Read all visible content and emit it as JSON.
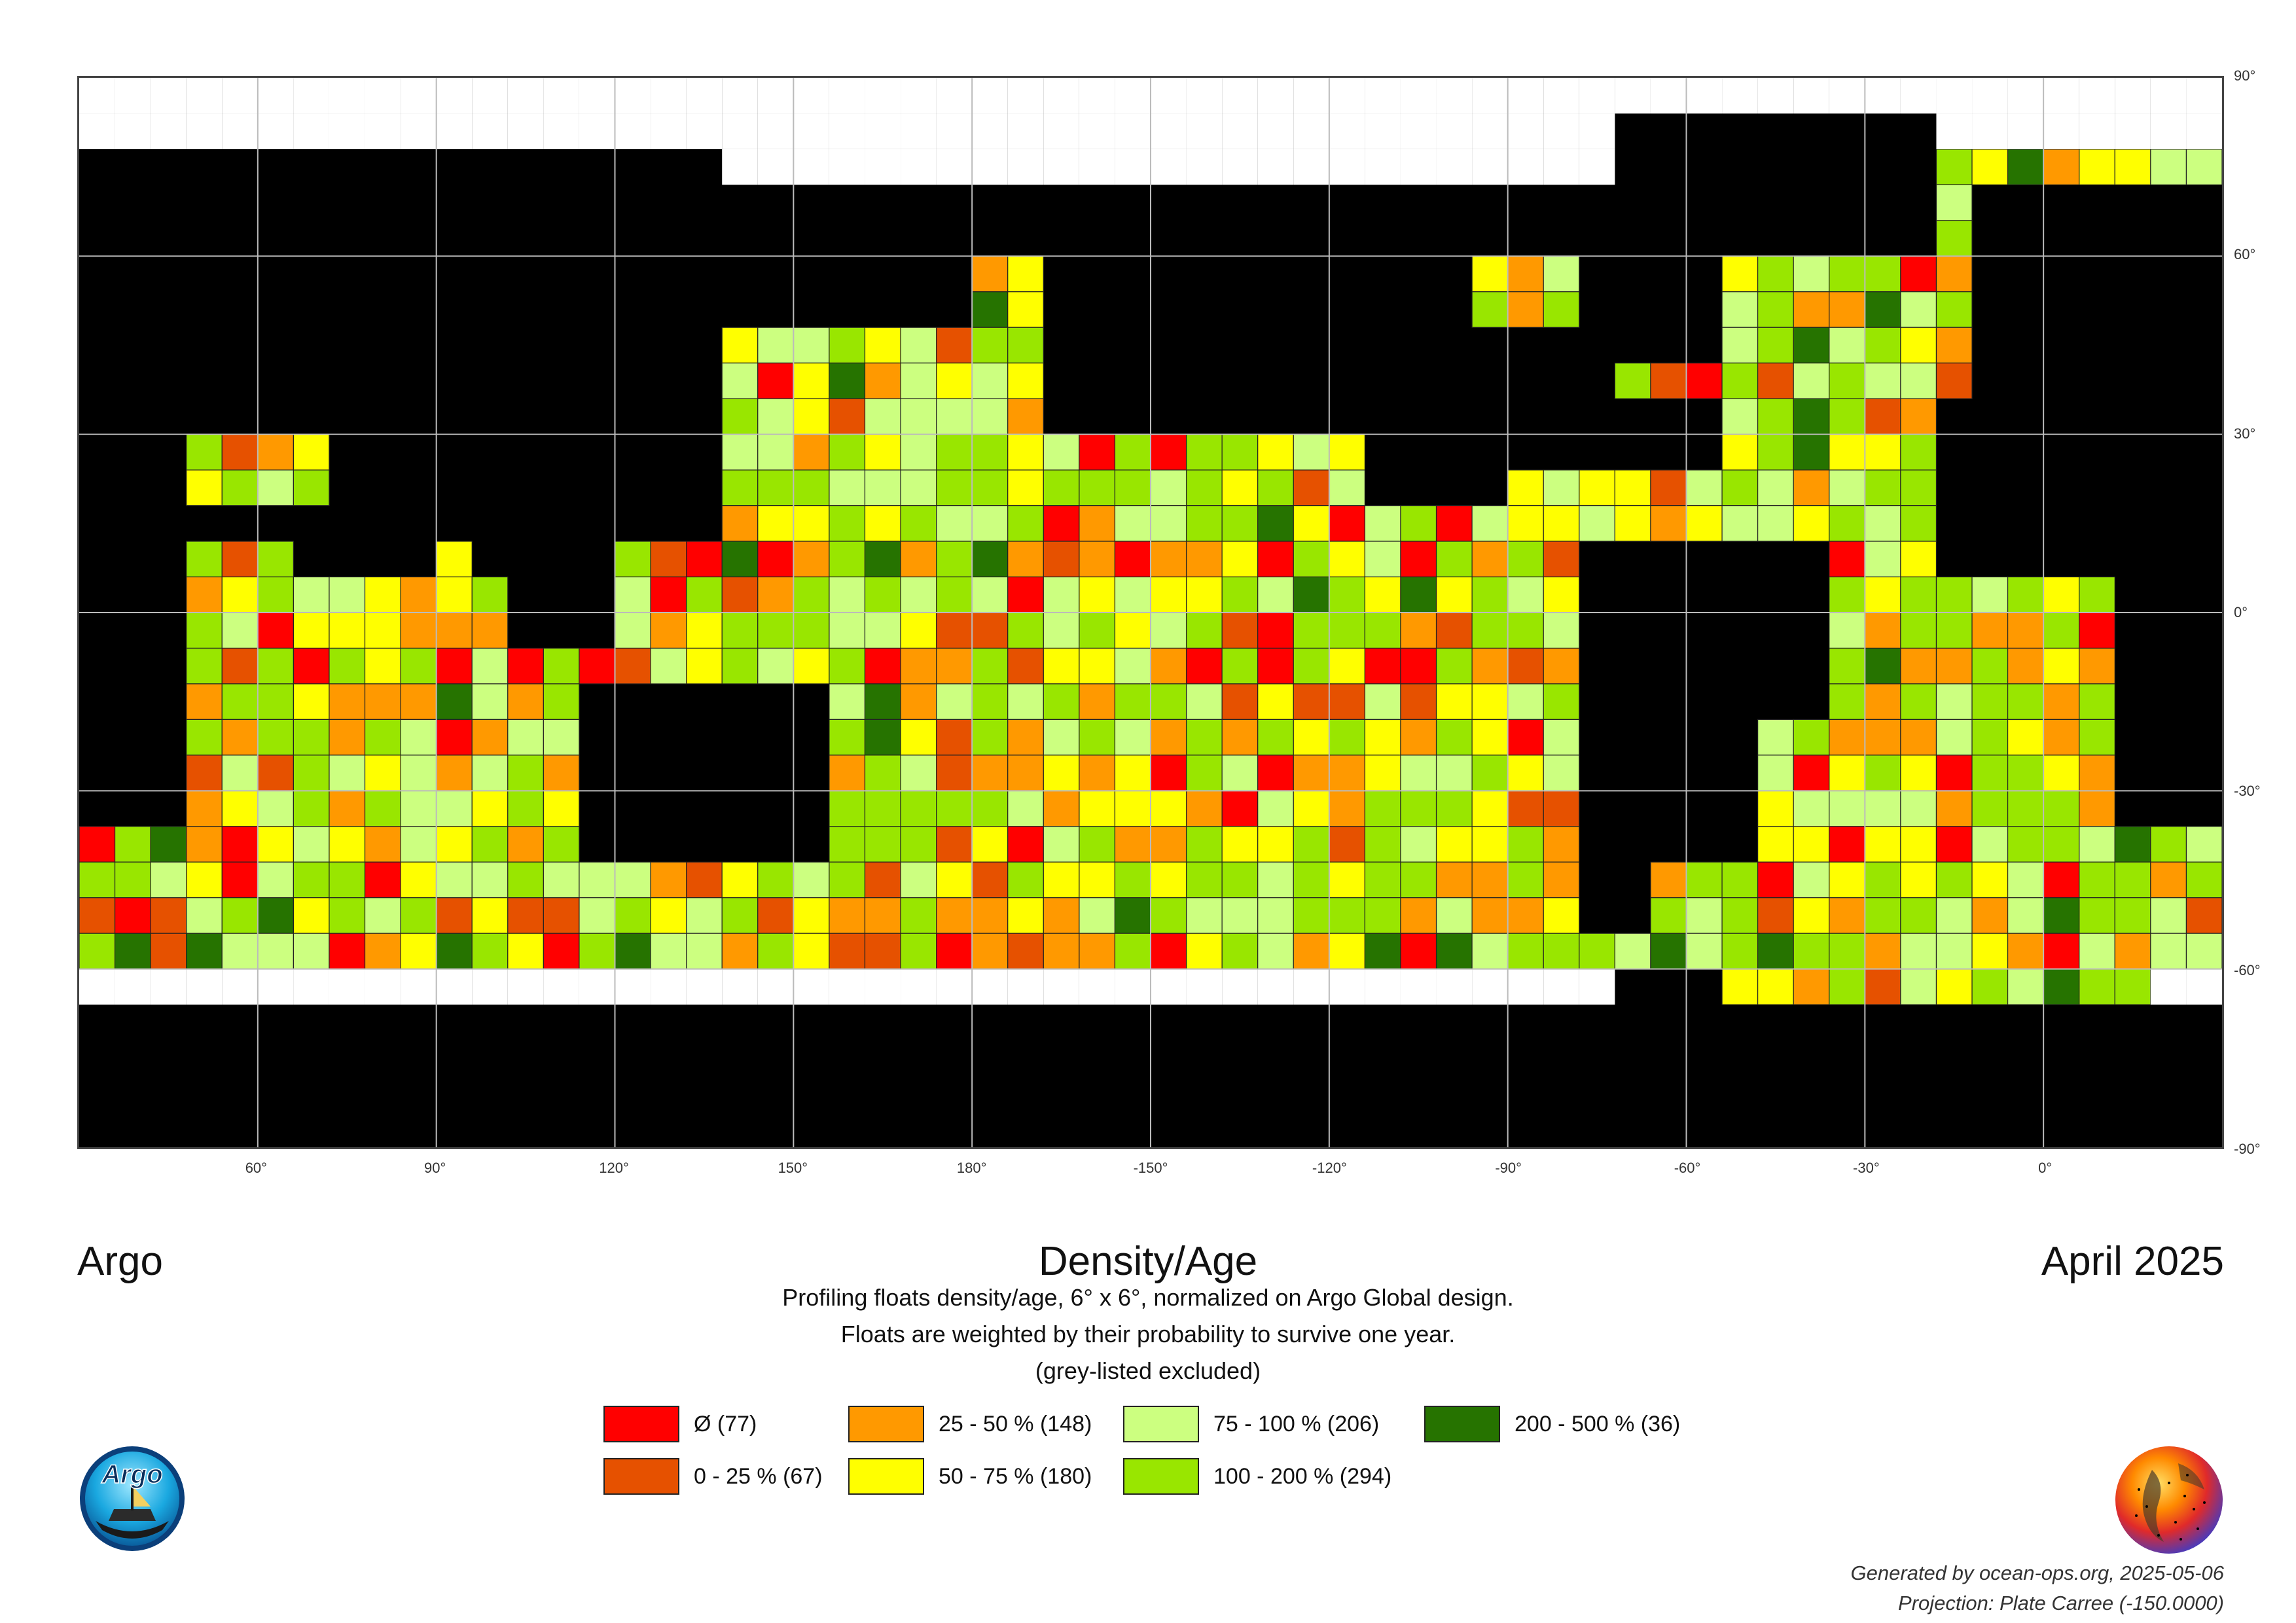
{
  "header": {
    "program": "Argo",
    "title": "Density/Age",
    "date": "April 2025"
  },
  "description": {
    "line1": "Profiling floats density/age, 6° x 6°, normalized on Argo Global design.",
    "line2": "Floats are weighted by their probability to survive one year.",
    "line3": "(grey-listed excluded)"
  },
  "legend": [
    {
      "label": "Ø (77)",
      "color": "#ff0000"
    },
    {
      "label": "0 - 25 % (67)",
      "color": "#e65100"
    },
    {
      "label": "25 - 50 % (148)",
      "color": "#ff9900"
    },
    {
      "label": "50 - 75 % (180)",
      "color": "#ffff00"
    },
    {
      "label": "75 - 100 % (206)",
      "color": "#ccff80"
    },
    {
      "label": "100 - 200 % (294)",
      "color": "#99e600"
    },
    {
      "label": "200 - 500 % (36)",
      "color": "#267300"
    }
  ],
  "axes": {
    "x_ticks": [
      "60°",
      "90°",
      "120°",
      "150°",
      "180°",
      "-150°",
      "-120°",
      "-90°",
      "-60°",
      "-30°",
      "0°"
    ],
    "y_ticks": [
      "90°",
      "60°",
      "30°",
      "0°",
      "-30°",
      "-60°",
      "-90°"
    ]
  },
  "footer": {
    "generated": "Generated by ocean-ops.org, 2025-05-06",
    "projection": "Projection: Plate Carree (-150.0000)"
  },
  "logos": {
    "argo_text": "Argo"
  },
  "colors": {
    "land": "#000000",
    "ice": "#ffffff",
    "grid": "#bbbbbb"
  }
}
